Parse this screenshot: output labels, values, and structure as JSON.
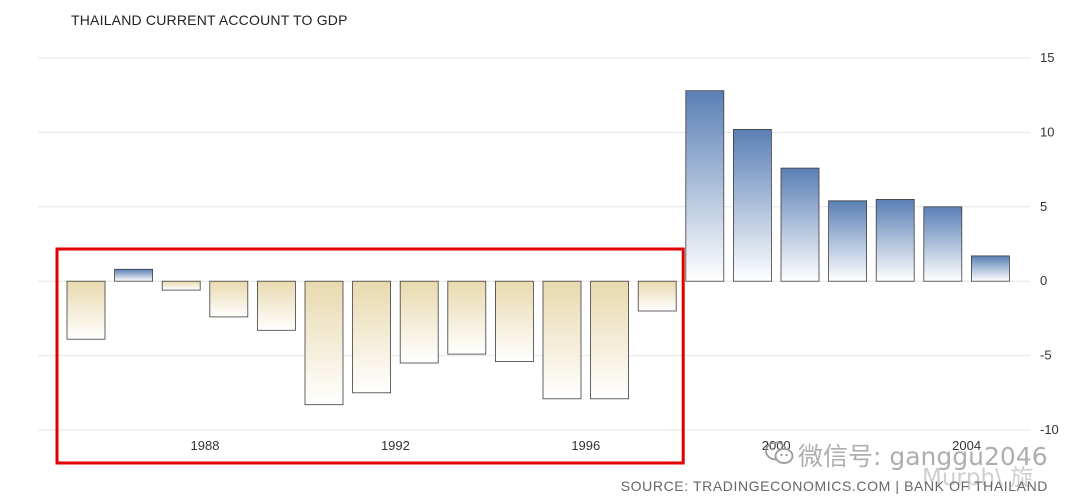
{
  "chart_data": {
    "type": "bar",
    "title": "THAILAND CURRENT ACCOUNT TO GDP",
    "source": "SOURCE: TRADINGECONOMICS.COM | BANK OF THAILAND",
    "x": [
      1985,
      1986,
      1987,
      1988,
      1989,
      1990,
      1991,
      1992,
      1993,
      1994,
      1995,
      1996,
      1997,
      1998,
      1999,
      2000,
      2001,
      2002,
      2003,
      2004
    ],
    "values": [
      -3.9,
      0.8,
      -0.6,
      -2.4,
      -3.3,
      -8.3,
      -7.5,
      -5.5,
      -4.9,
      -5.4,
      -7.9,
      -7.9,
      -2.0,
      12.8,
      10.2,
      7.6,
      5.4,
      5.5,
      5.0,
      1.7
    ],
    "x_tick_labels": [
      "1988",
      "1992",
      "1996",
      "2000",
      "2004"
    ],
    "y_ticks": [
      15,
      10,
      5,
      0,
      -5,
      -10
    ],
    "ylim": [
      -10,
      15
    ],
    "grid": true,
    "y_axis_side": "right",
    "colors": {
      "positive_top": "#5a7fb5",
      "positive_bottom": "#ffffff",
      "negative_top": "#e8d9ae",
      "negative_bottom": "#ffffff",
      "bar_stroke": "#3d3d3d",
      "grid": "#e6e6e6",
      "highlight_box": "#e00000"
    },
    "annotations": [
      {
        "type": "highlight-box",
        "color": "#e00000",
        "x_from": 1985,
        "x_to": 1997
      }
    ]
  },
  "watermark": {
    "text": "微信号: ganggu2046",
    "text2": "Murph\\ 旋",
    "icon": "wechat-icon"
  }
}
